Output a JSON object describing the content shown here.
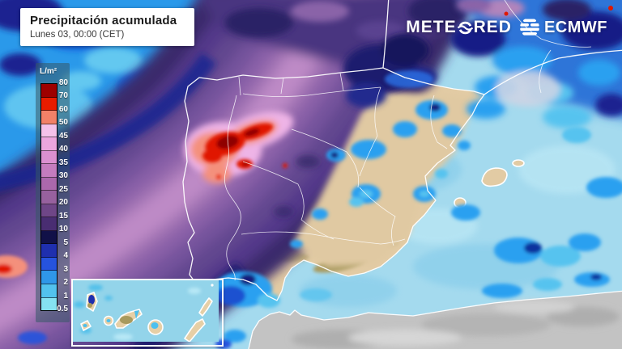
{
  "header": {
    "title": "Precipitación acumulada",
    "subtitle": "Lunes 03, 00:00 (CET)"
  },
  "branding": {
    "meteored_prefix": "METE",
    "meteored_suffix": "RED",
    "ecmwf": "ECMWF"
  },
  "legend": {
    "unit": "L/m²",
    "labels": [
      "80",
      "70",
      "60",
      "50",
      "45",
      "40",
      "35",
      "30",
      "25",
      "20",
      "15",
      "10",
      "5",
      "4",
      "3",
      "2",
      "1",
      "0.5"
    ],
    "colors": [
      "#9e0000",
      "#e81c00",
      "#f28168",
      "#f4c2ea",
      "#eca6de",
      "#da90d0",
      "#c47cbe",
      "#ab68ac",
      "#97619e",
      "#6f4687",
      "#492d72",
      "#111148",
      "#1f2fae",
      "#2653de",
      "#2f97e8",
      "#52c2ee",
      "#85e2f2"
    ]
  },
  "map_colors": {
    "sea_light_precip": "#a4daee",
    "dry_land": "#e2cba4",
    "no_data_land": "#c3c3c3",
    "coastline": "#ffffff"
  }
}
